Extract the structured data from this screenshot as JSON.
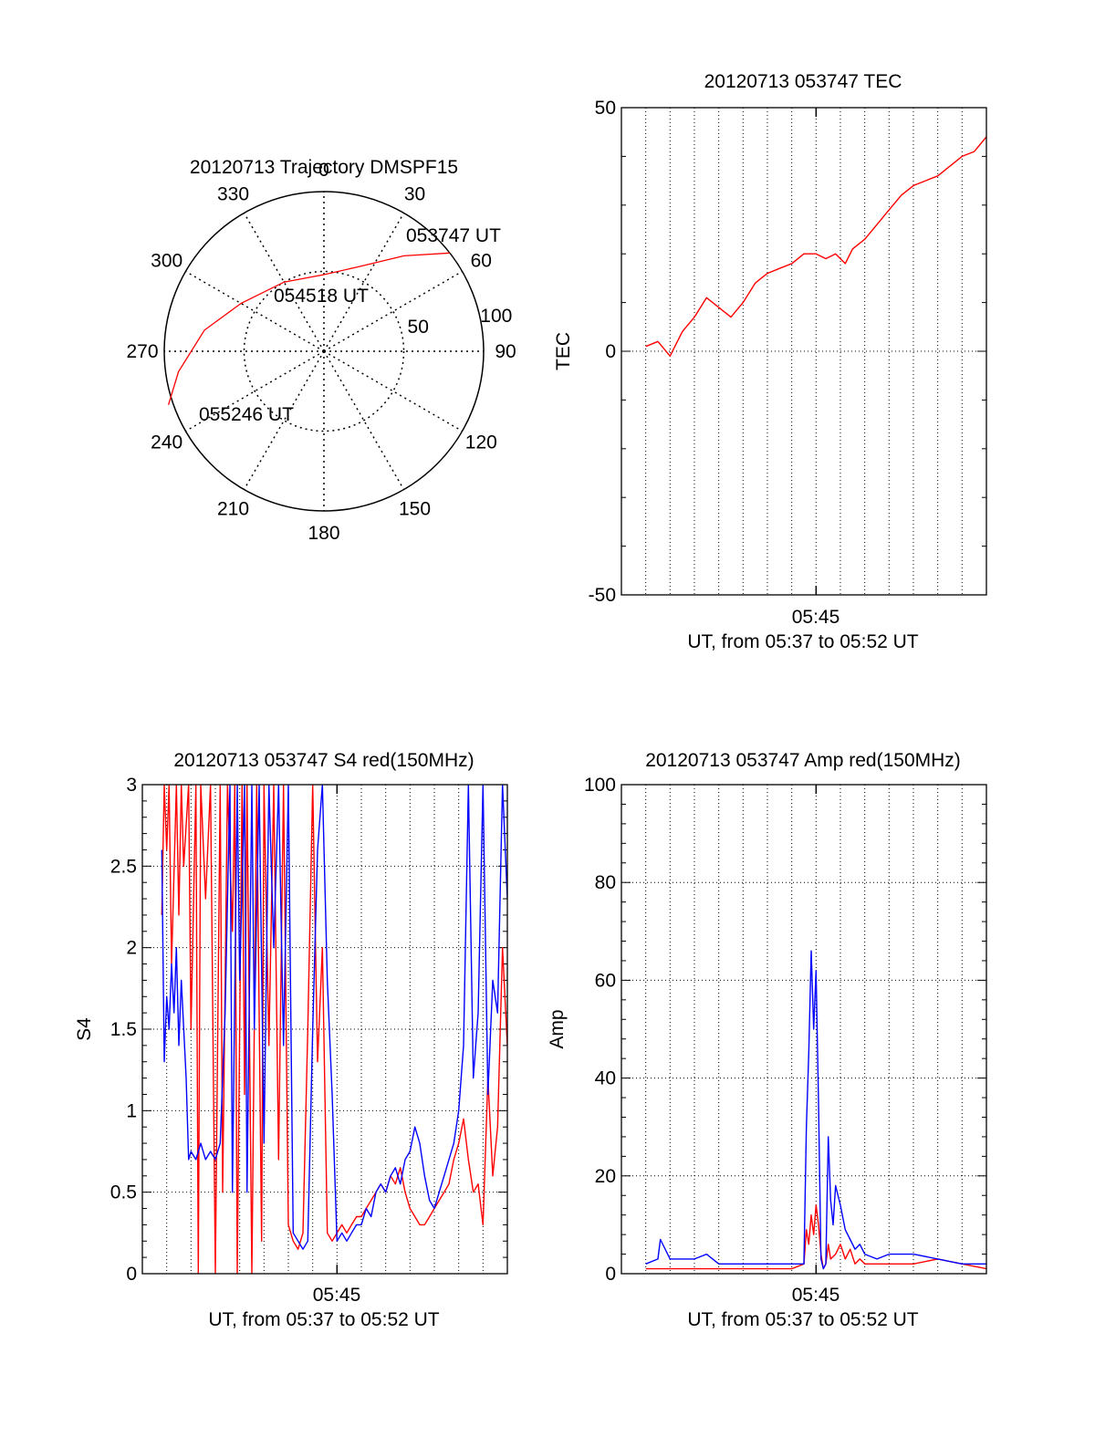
{
  "chart_data": [
    {
      "type": "polar",
      "title": "20120713 Trajectory DMSPF15",
      "azimuth_labels": [
        "0",
        "30",
        "60",
        "90",
        "120",
        "150",
        "180",
        "210",
        "240",
        "270",
        "300",
        "330"
      ],
      "radial_labels": [
        "50",
        "100"
      ],
      "grid": true,
      "annotations": [
        "053747 UT",
        "054518 UT",
        "055246 UT"
      ],
      "series": [
        {
          "color": "#ff0000",
          "points": [
            {
              "az": 52,
              "zen": 100
            },
            {
              "az": 40,
              "zen": 78
            },
            {
              "az": 22,
              "zen": 57
            },
            {
              "az": 0,
              "zen": 48
            },
            {
              "az": 330,
              "zen": 50
            },
            {
              "az": 300,
              "zen": 60
            },
            {
              "az": 280,
              "zen": 76
            },
            {
              "az": 262,
              "zen": 92
            },
            {
              "az": 251,
              "zen": 103
            }
          ]
        }
      ]
    },
    {
      "type": "line",
      "title": "20120713 053747 TEC",
      "ylabel": "TEC",
      "xlabel": "UT, from 05:37 to 05:52 UT",
      "x_tick_label": "05:45",
      "ylim": [
        -50,
        50
      ],
      "y_ticks": [
        "-50",
        "0",
        "50"
      ],
      "xlim_minutes": [
        0,
        15
      ],
      "grid": true,
      "series": [
        {
          "color": "#ff0000",
          "x": [
            1.0,
            1.5,
            2.0,
            2.5,
            3.0,
            3.5,
            4.0,
            4.5,
            5.0,
            5.5,
            6.0,
            6.5,
            7.0,
            7.5,
            8.0,
            8.4,
            8.8,
            9.2,
            9.5,
            10.0,
            10.5,
            11.0,
            11.5,
            12.0,
            12.5,
            13.0,
            13.5,
            14.0,
            14.5,
            15.0
          ],
          "y": [
            1,
            2,
            -1,
            4,
            7,
            11,
            9,
            7,
            10,
            14,
            16,
            17,
            18,
            20,
            20,
            19,
            20,
            18,
            21,
            23,
            26,
            29,
            32,
            34,
            35,
            36,
            38,
            40,
            41,
            44
          ]
        }
      ]
    },
    {
      "type": "line",
      "title": "20120713 053747 S4 red(150MHz)",
      "ylabel": "S4",
      "xlabel": "UT, from 05:37 to 05:52 UT",
      "x_tick_label": "05:45",
      "ylim": [
        0,
        3
      ],
      "y_ticks": [
        "0",
        "0.5",
        "1",
        "1.5",
        "2",
        "2.5",
        "3"
      ],
      "xlim_minutes": [
        0,
        15
      ],
      "grid": true,
      "series": [
        {
          "color": "#ff0000",
          "x": [
            0.8,
            0.9,
            1.0,
            1.1,
            1.2,
            1.4,
            1.5,
            1.6,
            1.7,
            1.9,
            2.0,
            2.2,
            2.3,
            2.4,
            2.6,
            2.8,
            3.0,
            3.2,
            3.3,
            3.5,
            3.7,
            3.8,
            3.9,
            4.1,
            4.2,
            4.3,
            4.5,
            4.7,
            4.9,
            5.0,
            5.2,
            5.4,
            5.6,
            5.8,
            6.0,
            6.2,
            6.4,
            6.6,
            6.8,
            7.0,
            7.2,
            7.4,
            7.6,
            7.8,
            8.0,
            8.2,
            8.4,
            8.6,
            8.8,
            9.0,
            9.2,
            9.4,
            9.6,
            9.8,
            10.0,
            10.2,
            10.4,
            10.6,
            10.8,
            11.0,
            11.2,
            11.4,
            11.6,
            11.8,
            12.0,
            12.2,
            12.4,
            12.6,
            12.8,
            13.0,
            13.2,
            13.4,
            13.6,
            13.8,
            14.0,
            14.2,
            14.4,
            14.6,
            14.8,
            15.0
          ],
          "y": [
            2.2,
            3.0,
            2.6,
            3.0,
            1.9,
            3.0,
            2.2,
            3.0,
            2.5,
            3.0,
            1.5,
            3.0,
            0.0,
            3.0,
            2.3,
            3.0,
            0.0,
            3.0,
            0.5,
            3.0,
            2.1,
            3.0,
            0.0,
            3.0,
            1.1,
            3.0,
            0.0,
            3.0,
            0.2,
            3.0,
            1.4,
            3.0,
            0.7,
            3.0,
            0.3,
            0.2,
            0.15,
            0.25,
            1.5,
            3.0,
            1.3,
            2.0,
            0.25,
            0.2,
            0.25,
            0.3,
            0.25,
            0.3,
            0.35,
            0.35,
            0.4,
            0.45,
            0.5,
            0.55,
            0.5,
            0.6,
            0.55,
            0.65,
            0.5,
            0.4,
            0.35,
            0.3,
            0.3,
            0.35,
            0.4,
            0.45,
            0.5,
            0.55,
            0.7,
            0.8,
            0.95,
            0.7,
            0.5,
            0.55,
            0.3,
            1.2,
            0.6,
            0.9,
            2.0,
            1.4
          ]
        },
        {
          "color": "#0000ff",
          "x": [
            0.8,
            0.9,
            1.0,
            1.1,
            1.2,
            1.3,
            1.4,
            1.5,
            1.6,
            1.8,
            1.9,
            2.0,
            2.2,
            2.4,
            2.6,
            2.8,
            3.0,
            3.2,
            3.4,
            3.6,
            3.7,
            3.9,
            4.0,
            4.2,
            4.3,
            4.5,
            4.6,
            4.8,
            5.0,
            5.2,
            5.4,
            5.6,
            5.8,
            6.0,
            6.2,
            6.4,
            6.6,
            6.8,
            7.0,
            7.2,
            7.4,
            7.6,
            7.8,
            8.0,
            8.2,
            8.4,
            8.6,
            8.8,
            9.0,
            9.2,
            9.4,
            9.6,
            9.8,
            10.0,
            10.2,
            10.4,
            10.6,
            10.8,
            11.0,
            11.2,
            11.4,
            11.6,
            11.8,
            12.0,
            12.2,
            12.4,
            12.6,
            12.8,
            13.0,
            13.2,
            13.4,
            13.6,
            13.8,
            14.0,
            14.2,
            14.4,
            14.6,
            14.8,
            15.0
          ],
          "y": [
            2.6,
            1.3,
            1.7,
            1.5,
            1.9,
            1.6,
            2.0,
            1.4,
            1.8,
            1.2,
            0.7,
            0.75,
            0.7,
            0.8,
            0.7,
            0.75,
            0.7,
            0.8,
            1.6,
            3.0,
            0.5,
            3.0,
            1.8,
            3.0,
            0.5,
            3.0,
            1.5,
            3.0,
            0.8,
            3.0,
            2.0,
            3.0,
            1.4,
            3.0,
            0.25,
            0.2,
            0.15,
            0.2,
            1.5,
            2.6,
            3.0,
            1.8,
            1.1,
            0.2,
            0.25,
            0.2,
            0.25,
            0.3,
            0.3,
            0.4,
            0.35,
            0.5,
            0.55,
            0.5,
            0.6,
            0.65,
            0.55,
            0.7,
            0.75,
            0.9,
            0.8,
            0.6,
            0.45,
            0.4,
            0.5,
            0.6,
            0.7,
            0.8,
            1.0,
            1.4,
            3.0,
            1.2,
            1.6,
            3.0,
            1.1,
            1.8,
            1.6,
            3.0,
            2.3
          ]
        }
      ]
    },
    {
      "type": "line",
      "title": "20120713 053747 Amp red(150MHz)",
      "ylabel": "Amp",
      "xlabel": "UT, from 05:37 to 05:52 UT",
      "x_tick_label": "05:45",
      "ylim": [
        0,
        100
      ],
      "y_ticks": [
        "0",
        "20",
        "40",
        "60",
        "80",
        "100"
      ],
      "xlim_minutes": [
        0,
        15
      ],
      "grid": true,
      "series": [
        {
          "color": "#ff0000",
          "x": [
            1.0,
            2.0,
            3.0,
            4.0,
            5.0,
            6.0,
            6.5,
            7.0,
            7.5,
            7.6,
            7.7,
            7.8,
            7.9,
            8.0,
            8.1,
            8.2,
            8.3,
            8.4,
            8.5,
            8.6,
            8.8,
            9.0,
            9.2,
            9.4,
            9.6,
            9.8,
            10.0,
            11.0,
            12.0,
            13.0,
            14.0,
            15.0
          ],
          "y": [
            1,
            1,
            1,
            1,
            1,
            1,
            1,
            1,
            2,
            9,
            6,
            12,
            8,
            14,
            10,
            4,
            1,
            2,
            6,
            3,
            4,
            6,
            3,
            5,
            2,
            3,
            2,
            2,
            2,
            3,
            2,
            1
          ]
        },
        {
          "color": "#0000ff",
          "x": [
            1.0,
            1.5,
            1.6,
            2.0,
            3.0,
            3.5,
            4.0,
            5.0,
            6.0,
            7.0,
            7.5,
            7.6,
            7.7,
            7.8,
            7.9,
            8.0,
            8.1,
            8.2,
            8.3,
            8.4,
            8.5,
            8.6,
            8.7,
            8.8,
            9.0,
            9.2,
            9.4,
            9.6,
            9.8,
            10.0,
            10.5,
            11.0,
            12.0,
            13.0,
            14.0,
            15.0
          ],
          "y": [
            2,
            3,
            7,
            3,
            3,
            4,
            2,
            2,
            2,
            2,
            2,
            30,
            45,
            66,
            50,
            62,
            35,
            3,
            1,
            2,
            28,
            15,
            10,
            18,
            14,
            9,
            7,
            5,
            6,
            4,
            3,
            4,
            4,
            3,
            2,
            2
          ]
        }
      ]
    }
  ]
}
